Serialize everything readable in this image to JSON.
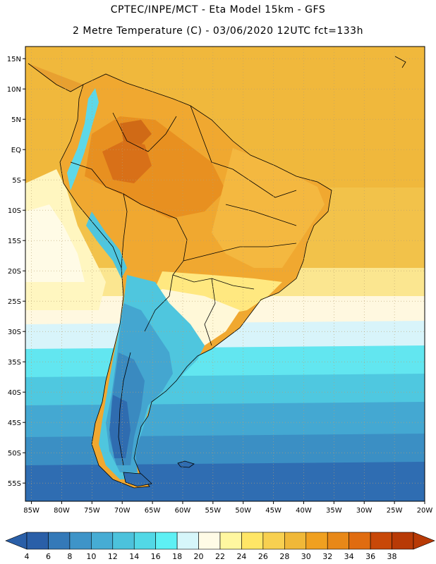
{
  "header": {
    "line1": "CPTEC/INPE/MCT -  Eta Model 15km - GFS",
    "line2": "2 Metre Temperature (C) - 03/06/2020 12UTC fct=133h"
  },
  "map": {
    "lon_range": [
      -86,
      -20
    ],
    "lat_range": [
      -58,
      17
    ],
    "lat_ticks": [
      "15N",
      "10N",
      "5N",
      "EQ",
      "5S",
      "10S",
      "15S",
      "20S",
      "25S",
      "30S",
      "35S",
      "40S",
      "45S",
      "50S",
      "55S"
    ],
    "lat_values": [
      15,
      10,
      5,
      0,
      -5,
      -10,
      -15,
      -20,
      -25,
      -30,
      -35,
      -40,
      -45,
      -50,
      -55
    ],
    "lon_ticks": [
      "85W",
      "80W",
      "75W",
      "70W",
      "65W",
      "60W",
      "55W",
      "50W",
      "45W",
      "40W",
      "35W",
      "30W",
      "25W",
      "20W"
    ],
    "lon_values": [
      -85,
      -80,
      -75,
      -70,
      -65,
      -60,
      -55,
      -50,
      -45,
      -40,
      -35,
      -30,
      -25,
      -20
    ]
  },
  "colorbar": {
    "labels": [
      "4",
      "6",
      "8",
      "10",
      "12",
      "14",
      "16",
      "18",
      "20",
      "22",
      "24",
      "26",
      "28",
      "30",
      "32",
      "34",
      "36",
      "38"
    ],
    "colors": [
      "#2a5fa8",
      "#3479b8",
      "#3e94c8",
      "#46acd4",
      "#4cc2dc",
      "#52d8e6",
      "#5ef0f4",
      "#d6f6fa",
      "#fffbe6",
      "#fff7a0",
      "#ffe666",
      "#f8d050",
      "#f0b838",
      "#f0a020",
      "#e88818",
      "#e06c10",
      "#c84808",
      "#b83a06"
    ]
  }
}
